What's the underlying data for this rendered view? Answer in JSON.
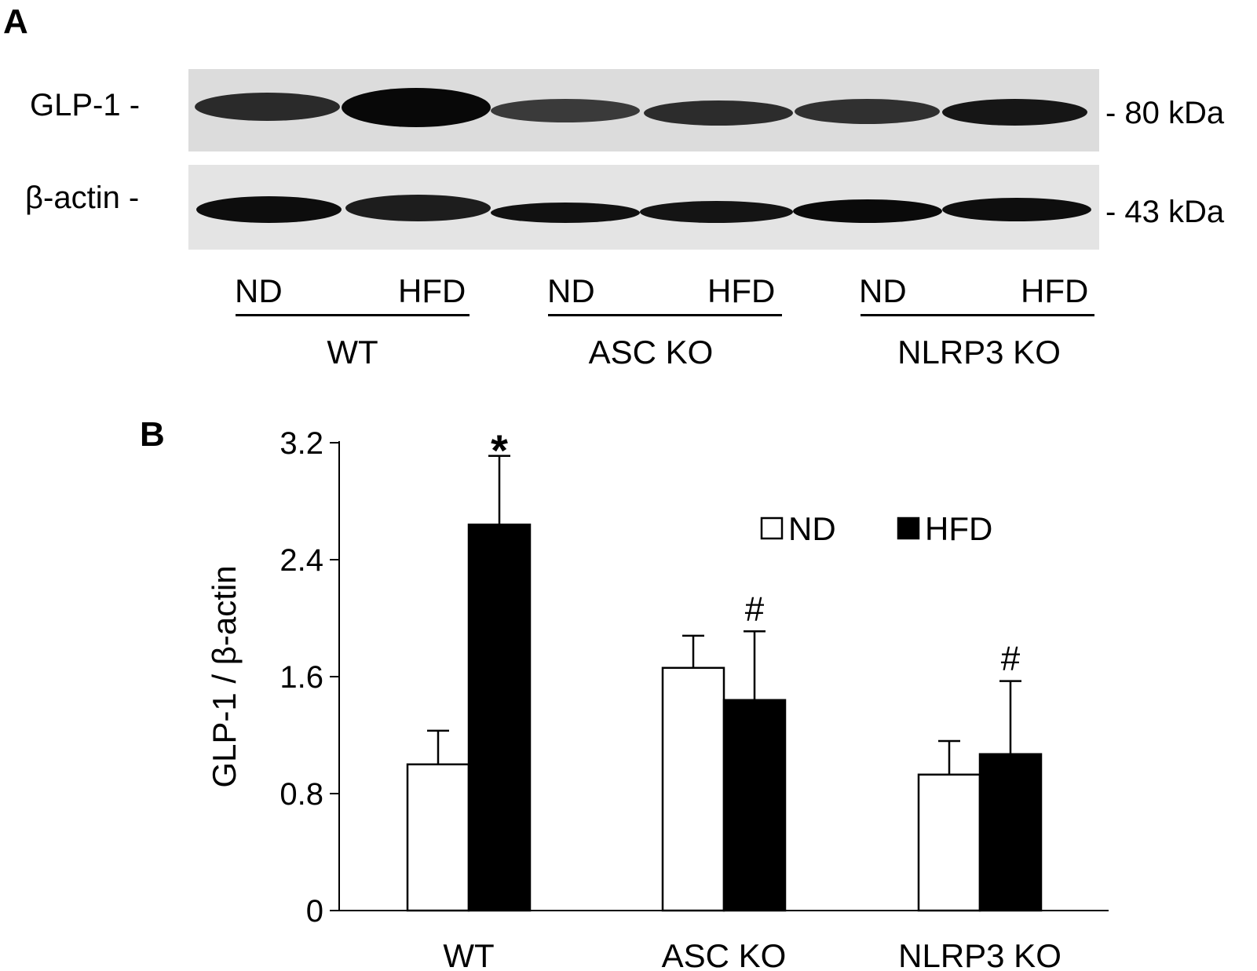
{
  "panel_a": {
    "letter": "A",
    "rows": [
      {
        "label": "GLP-1 -",
        "marker": "- 80 kDa"
      },
      {
        "label": "β-actin -",
        "marker": "- 43 kDa"
      }
    ],
    "lanes": [
      "ND",
      "HFD",
      "ND",
      "HFD",
      "ND",
      "HFD"
    ],
    "groups": [
      "WT",
      "ASC KO",
      "NLRP3 KO"
    ]
  },
  "panel_b": {
    "letter": "B"
  },
  "colors": {
    "nd_fill": "#ffffff",
    "hfd_fill": "#000000",
    "blot_bg_top": "#dcdcdc",
    "blot_bg_bottom": "#e4e4e4"
  },
  "chart_data": {
    "type": "bar",
    "categories": [
      "WT",
      "ASC KO",
      "NLRP3 KO"
    ],
    "series": [
      {
        "name": "ND",
        "values": [
          1.0,
          1.66,
          0.93
        ],
        "errors": [
          0.23,
          0.22,
          0.23
        ]
      },
      {
        "name": "HFD",
        "values": [
          2.64,
          1.44,
          1.07
        ],
        "errors": [
          0.47,
          0.47,
          0.5
        ]
      }
    ],
    "annotations": [
      {
        "category": "WT",
        "series": "HFD",
        "text": "*"
      },
      {
        "category": "ASC KO",
        "series": "HFD",
        "text": "#"
      },
      {
        "category": "NLRP3 KO",
        "series": "HFD",
        "text": "#"
      }
    ],
    "title": "",
    "xlabel": "",
    "ylabel": "GLP-1 / β-actin",
    "ylim": [
      0,
      3.2
    ],
    "yticks": [
      "0",
      "0.8",
      "1.6",
      "2.4",
      "3.2"
    ],
    "legend": "top-right",
    "grid": false
  }
}
